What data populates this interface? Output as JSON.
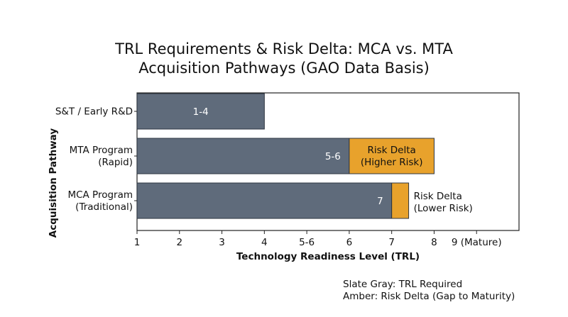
{
  "title_line1": "TRL Requirements & Risk Delta: MCA vs. MTA",
  "title_line2": "Acquisition Pathways (GAO Data Basis)",
  "notes": {
    "line1": "Slate Gray: TRL Required",
    "line2": "Amber: Risk Delta (Gap to Maturity)"
  },
  "colors": {
    "slate": "#5f6b7b",
    "amber": "#e8a22c"
  },
  "chart_data": {
    "type": "bar",
    "orientation": "horizontal",
    "stacked": true,
    "title": "TRL Requirements & Risk Delta: MCA vs. MTA Acquisition Pathways (GAO Data Basis)",
    "xlabel": "Technology Readiness Level (TRL)",
    "ylabel": "Acquisition Pathway",
    "xlim": [
      1,
      10
    ],
    "x_ticks": [
      1,
      2,
      3,
      4,
      5,
      6,
      7,
      8,
      9
    ],
    "x_tick_labels": [
      "1",
      "2",
      "3",
      "4",
      "5-6",
      "6",
      "7",
      "8",
      "9 (Mature)"
    ],
    "grid": false,
    "categories": [
      {
        "label_lines": [
          "S&T / Early R&D"
        ],
        "trl_label": "1-4",
        "trl_end": 4.0,
        "risk_end": null,
        "risk_lines": [],
        "risk_label_inside": true
      },
      {
        "label_lines": [
          "MTA Program",
          "(Rapid)"
        ],
        "trl_label": "5-6",
        "trl_end": 6.0,
        "risk_end": 8.0,
        "risk_lines": [
          "Risk Delta",
          "(Higher Risk)"
        ],
        "risk_label_inside": true
      },
      {
        "label_lines": [
          "MCA Program",
          "(Traditional)"
        ],
        "trl_label": "7",
        "trl_end": 7.0,
        "risk_end": 7.4,
        "risk_lines": [
          "Risk Delta",
          "(Lower Risk)"
        ],
        "risk_label_inside": false
      }
    ],
    "series": [
      {
        "name": "TRL Required",
        "color": "#5f6b7b"
      },
      {
        "name": "Risk Delta (Gap to Maturity)",
        "color": "#e8a22c"
      }
    ]
  }
}
